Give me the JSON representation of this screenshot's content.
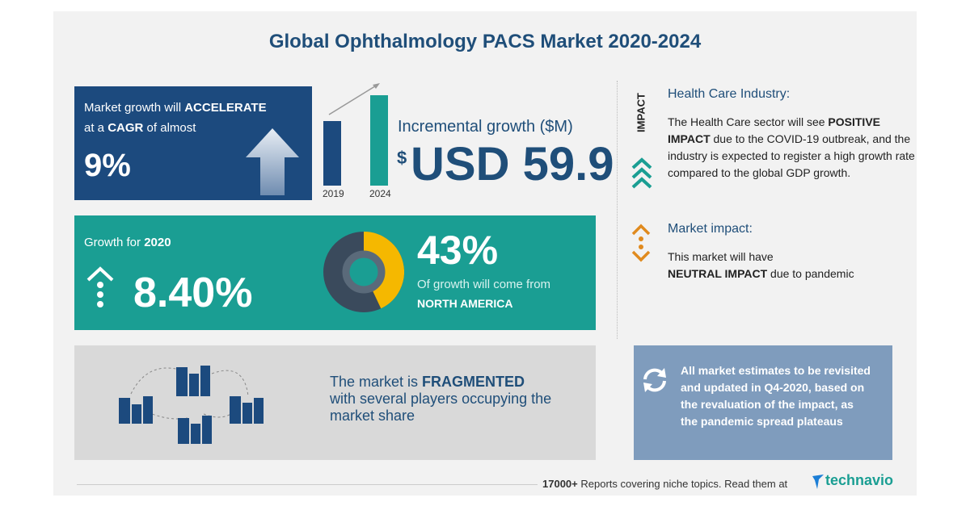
{
  "title": "Global Ophthalmology PACS Market 2020-2024",
  "growth_panel": {
    "line1": "Market growth will",
    "line1_bold": "ACCELERATE",
    "line2": "at a",
    "line2_bold": "CAGR",
    "line2_end": "of almost",
    "cagr": "9%"
  },
  "incremental": {
    "bar_labels": [
      "2019",
      "2024"
    ],
    "label": "Incremental growth ($M)",
    "currency": "$",
    "amount": "USD 59.9"
  },
  "impact": {
    "tag": "IMPACT",
    "heading": "Health Care Industry:",
    "text_start": "The Health Care sector will see",
    "text_bold": "POSITIVE IMPACT",
    "text_end": "due to the COVID-19 outbreak, and the industry is expected to register a high growth rate compared to the global GDP growth."
  },
  "market_impact": {
    "heading": "Market impact:",
    "text_start": "This market will have",
    "text_bold": "NEUTRAL IMPACT",
    "text_end": "due to pandemic"
  },
  "growth": {
    "label": "Growth for",
    "year": "2020",
    "rate": "8.40%",
    "share": {
      "value": 43,
      "label": "43%"
    },
    "share_text": "Of growth will come from",
    "region": "NORTH AMERICA"
  },
  "fragmented": {
    "text_start": "The market is",
    "text_bold": "FRAGMENTED",
    "text_end": "with several players occupying the market share"
  },
  "note": "All market estimates to be revisited and updated in Q4-2020, based on the revaluation of the impact, as the pandemic spread plateaus",
  "footer": {
    "count": "17000+",
    "text": "Reports covering niche topics. Read them at",
    "brand": "technavio"
  }
}
